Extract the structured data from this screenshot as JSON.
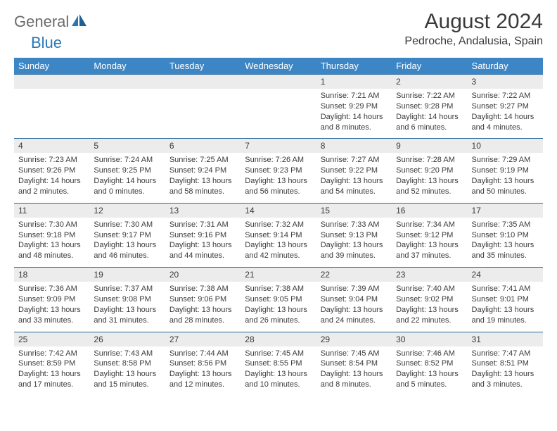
{
  "logo": {
    "text1": "General",
    "text2": "Blue"
  },
  "title": "August 2024",
  "location": "Pedroche, Andalusia, Spain",
  "colors": {
    "header_bg": "#3d86c6",
    "header_text": "#ffffff",
    "numrow_bg": "#ececec",
    "row_border": "#2a6aa0",
    "body_text": "#3a3a3a",
    "logo_gray": "#6b6b6b",
    "logo_blue": "#2a77b8"
  },
  "daynames": [
    "Sunday",
    "Monday",
    "Tuesday",
    "Wednesday",
    "Thursday",
    "Friday",
    "Saturday"
  ],
  "weeks": [
    {
      "nums": [
        "",
        "",
        "",
        "",
        "1",
        "2",
        "3"
      ],
      "cells": [
        null,
        null,
        null,
        null,
        {
          "sr": "7:21 AM",
          "ss": "9:29 PM",
          "dl": "14 hours and 8 minutes."
        },
        {
          "sr": "7:22 AM",
          "ss": "9:28 PM",
          "dl": "14 hours and 6 minutes."
        },
        {
          "sr": "7:22 AM",
          "ss": "9:27 PM",
          "dl": "14 hours and 4 minutes."
        }
      ]
    },
    {
      "nums": [
        "4",
        "5",
        "6",
        "7",
        "8",
        "9",
        "10"
      ],
      "cells": [
        {
          "sr": "7:23 AM",
          "ss": "9:26 PM",
          "dl": "14 hours and 2 minutes."
        },
        {
          "sr": "7:24 AM",
          "ss": "9:25 PM",
          "dl": "14 hours and 0 minutes."
        },
        {
          "sr": "7:25 AM",
          "ss": "9:24 PM",
          "dl": "13 hours and 58 minutes."
        },
        {
          "sr": "7:26 AM",
          "ss": "9:23 PM",
          "dl": "13 hours and 56 minutes."
        },
        {
          "sr": "7:27 AM",
          "ss": "9:22 PM",
          "dl": "13 hours and 54 minutes."
        },
        {
          "sr": "7:28 AM",
          "ss": "9:20 PM",
          "dl": "13 hours and 52 minutes."
        },
        {
          "sr": "7:29 AM",
          "ss": "9:19 PM",
          "dl": "13 hours and 50 minutes."
        }
      ]
    },
    {
      "nums": [
        "11",
        "12",
        "13",
        "14",
        "15",
        "16",
        "17"
      ],
      "cells": [
        {
          "sr": "7:30 AM",
          "ss": "9:18 PM",
          "dl": "13 hours and 48 minutes."
        },
        {
          "sr": "7:30 AM",
          "ss": "9:17 PM",
          "dl": "13 hours and 46 minutes."
        },
        {
          "sr": "7:31 AM",
          "ss": "9:16 PM",
          "dl": "13 hours and 44 minutes."
        },
        {
          "sr": "7:32 AM",
          "ss": "9:14 PM",
          "dl": "13 hours and 42 minutes."
        },
        {
          "sr": "7:33 AM",
          "ss": "9:13 PM",
          "dl": "13 hours and 39 minutes."
        },
        {
          "sr": "7:34 AM",
          "ss": "9:12 PM",
          "dl": "13 hours and 37 minutes."
        },
        {
          "sr": "7:35 AM",
          "ss": "9:10 PM",
          "dl": "13 hours and 35 minutes."
        }
      ]
    },
    {
      "nums": [
        "18",
        "19",
        "20",
        "21",
        "22",
        "23",
        "24"
      ],
      "cells": [
        {
          "sr": "7:36 AM",
          "ss": "9:09 PM",
          "dl": "13 hours and 33 minutes."
        },
        {
          "sr": "7:37 AM",
          "ss": "9:08 PM",
          "dl": "13 hours and 31 minutes."
        },
        {
          "sr": "7:38 AM",
          "ss": "9:06 PM",
          "dl": "13 hours and 28 minutes."
        },
        {
          "sr": "7:38 AM",
          "ss": "9:05 PM",
          "dl": "13 hours and 26 minutes."
        },
        {
          "sr": "7:39 AM",
          "ss": "9:04 PM",
          "dl": "13 hours and 24 minutes."
        },
        {
          "sr": "7:40 AM",
          "ss": "9:02 PM",
          "dl": "13 hours and 22 minutes."
        },
        {
          "sr": "7:41 AM",
          "ss": "9:01 PM",
          "dl": "13 hours and 19 minutes."
        }
      ]
    },
    {
      "nums": [
        "25",
        "26",
        "27",
        "28",
        "29",
        "30",
        "31"
      ],
      "cells": [
        {
          "sr": "7:42 AM",
          "ss": "8:59 PM",
          "dl": "13 hours and 17 minutes."
        },
        {
          "sr": "7:43 AM",
          "ss": "8:58 PM",
          "dl": "13 hours and 15 minutes."
        },
        {
          "sr": "7:44 AM",
          "ss": "8:56 PM",
          "dl": "13 hours and 12 minutes."
        },
        {
          "sr": "7:45 AM",
          "ss": "8:55 PM",
          "dl": "13 hours and 10 minutes."
        },
        {
          "sr": "7:45 AM",
          "ss": "8:54 PM",
          "dl": "13 hours and 8 minutes."
        },
        {
          "sr": "7:46 AM",
          "ss": "8:52 PM",
          "dl": "13 hours and 5 minutes."
        },
        {
          "sr": "7:47 AM",
          "ss": "8:51 PM",
          "dl": "13 hours and 3 minutes."
        }
      ]
    }
  ]
}
